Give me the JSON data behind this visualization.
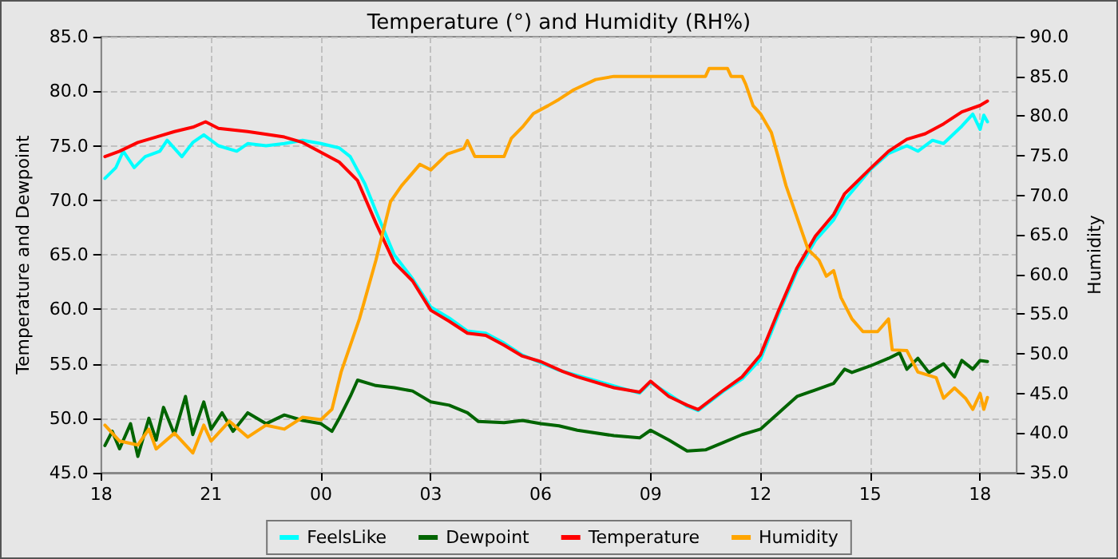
{
  "chart_data": {
    "type": "line",
    "title": "Temperature (°) and Humidity (RH%)",
    "ylabel": "Temperature and Dewpoint",
    "y2label": "Humidity",
    "xlim": [
      18,
      43
    ],
    "xticks": [
      {
        "value": 18,
        "label": "18"
      },
      {
        "value": 21,
        "label": "21"
      },
      {
        "value": 24,
        "label": "00"
      },
      {
        "value": 27,
        "label": "03"
      },
      {
        "value": 30,
        "label": "06"
      },
      {
        "value": 33,
        "label": "09"
      },
      {
        "value": 36,
        "label": "12"
      },
      {
        "value": 39,
        "label": "15"
      },
      {
        "value": 42,
        "label": "18"
      }
    ],
    "ylim": [
      45,
      85
    ],
    "yticks": [
      {
        "value": 45,
        "label": "45.0"
      },
      {
        "value": 50,
        "label": "50.0"
      },
      {
        "value": 55,
        "label": "55.0"
      },
      {
        "value": 60,
        "label": "60.0"
      },
      {
        "value": 65,
        "label": "65.0"
      },
      {
        "value": 70,
        "label": "70.0"
      },
      {
        "value": 75,
        "label": "75.0"
      },
      {
        "value": 80,
        "label": "80.0"
      },
      {
        "value": 85,
        "label": "85.0"
      }
    ],
    "y2lim": [
      35,
      90
    ],
    "y2ticks": [
      {
        "value": 35,
        "label": "35.0"
      },
      {
        "value": 40,
        "label": "40.0"
      },
      {
        "value": 45,
        "label": "45.0"
      },
      {
        "value": 50,
        "label": "50.0"
      },
      {
        "value": 55,
        "label": "55.0"
      },
      {
        "value": 60,
        "label": "60.0"
      },
      {
        "value": 65,
        "label": "65.0"
      },
      {
        "value": 70,
        "label": "70.0"
      },
      {
        "value": 75,
        "label": "75.0"
      },
      {
        "value": 80,
        "label": "80.0"
      },
      {
        "value": 85,
        "label": "85.0"
      },
      {
        "value": 90,
        "label": "90.0"
      }
    ],
    "grid": true,
    "legend": "bottom",
    "marker": "none",
    "line_style": "solid",
    "series": [
      {
        "name": "FeelsLike",
        "color": "#00ffff",
        "x": [
          18.1,
          18.4,
          18.6,
          18.9,
          19.2,
          19.6,
          19.8,
          20.2,
          20.5,
          20.8,
          21.2,
          21.7,
          22,
          22.5,
          23,
          23.5,
          24,
          24.5,
          24.8,
          25.2,
          25.5,
          26,
          26.5,
          27,
          27.5,
          28,
          28.5,
          29,
          29.5,
          30,
          30.5,
          31,
          32,
          32.7,
          33,
          33.5,
          34,
          34.3,
          35,
          35.5,
          36,
          36.5,
          37,
          37.5,
          38,
          38.3,
          39,
          39.5,
          40,
          40.3,
          40.7,
          41,
          41.5,
          41.8,
          42,
          42.1,
          42.2
        ],
        "values": [
          72.0,
          73.0,
          74.5,
          73.0,
          74.0,
          74.5,
          75.5,
          74.0,
          75.3,
          76.0,
          75.0,
          74.5,
          75.2,
          75.0,
          75.2,
          75.5,
          75.2,
          74.8,
          74.0,
          71.5,
          69.0,
          65.0,
          62.8,
          60.2,
          59.2,
          58.0,
          57.8,
          56.9,
          55.8,
          null,
          54.4,
          null,
          null,
          52.3,
          53.3,
          null,
          51.1,
          50.7,
          52.5,
          53.6,
          55.4,
          59.6,
          63.5,
          66.3,
          68.2,
          70.0,
          72.8,
          74.3,
          75.0,
          74.5,
          75.5,
          75.2,
          76.8,
          77.9,
          76.5,
          77.8,
          77.2
        ]
      },
      {
        "name": "Dewpoint",
        "color": "#006400",
        "x": [
          18.1,
          18.3,
          18.5,
          18.8,
          19.0,
          19.3,
          19.5,
          19.7,
          20.0,
          20.3,
          20.5,
          20.8,
          21.0,
          21.3,
          21.6,
          22,
          22.5,
          23,
          23.5,
          24,
          24.3,
          24.5,
          24.8,
          25.0,
          25.5,
          26,
          26.5,
          27,
          27.5,
          28,
          28.3,
          29,
          29.5,
          30,
          30.5,
          31,
          32,
          32.7,
          33,
          33.5,
          34,
          34.5,
          35,
          35.5,
          36,
          36.5,
          37,
          37.5,
          38,
          38.3,
          38.5,
          39,
          39.5,
          39.8,
          40,
          40.3,
          40.6,
          41,
          41.3,
          41.5,
          41.8,
          42,
          42.2
        ],
        "values": [
          47.5,
          48.8,
          47.2,
          49.5,
          46.5,
          50.0,
          48.0,
          51.0,
          48.5,
          52.0,
          48.5,
          51.5,
          49.0,
          50.5,
          48.8,
          50.5,
          49.5,
          50.3,
          49.8,
          49.5,
          48.8,
          50.0,
          52.0,
          53.5,
          53.0,
          52.8,
          52.5,
          51.5,
          51.2,
          50.5,
          49.7,
          49.6,
          49.8,
          49.5,
          49.3,
          48.9,
          48.4,
          48.2,
          48.9,
          48.0,
          47.0,
          47.1,
          47.8,
          48.5,
          49.0,
          50.5,
          52.0,
          52.6,
          53.2,
          54.5,
          54.2,
          54.8,
          55.5,
          56.0,
          54.5,
          55.5,
          54.2,
          55.0,
          53.8,
          55.3,
          54.5,
          55.3,
          55.2
        ]
      },
      {
        "name": "Temperature",
        "color": "#ff0000",
        "x": [
          18.1,
          18.5,
          19,
          19.5,
          20,
          20.5,
          20.85,
          21.2,
          22,
          23,
          23.5,
          24,
          24.5,
          25,
          25.5,
          26,
          26.5,
          27,
          27.5,
          28,
          28.5,
          29,
          29.5,
          30,
          30.6,
          31,
          32,
          32.7,
          33,
          33.5,
          34,
          34.3,
          35,
          35.5,
          36,
          36.5,
          37,
          37.5,
          38,
          38.3,
          39,
          39.5,
          40,
          40.5,
          41,
          41.5,
          42,
          42.2
        ],
        "values": [
          74.0,
          74.5,
          75.3,
          75.8,
          76.3,
          76.7,
          77.2,
          76.6,
          76.3,
          75.8,
          75.3,
          74.4,
          73.5,
          71.8,
          67.9,
          64.3,
          62.6,
          59.9,
          58.9,
          57.8,
          57.6,
          56.7,
          55.7,
          55.2,
          54.3,
          53.8,
          52.8,
          52.4,
          53.4,
          52.0,
          51.2,
          50.8,
          52.6,
          53.8,
          55.8,
          59.9,
          63.8,
          66.7,
          68.7,
          70.6,
          72.9,
          74.5,
          75.6,
          76.1,
          77.0,
          78.1,
          78.7,
          79.1
        ]
      },
      {
        "name": "Humidity",
        "color": "#ffa500",
        "axis": "y2",
        "x": [
          18.1,
          18.5,
          19.0,
          19.3,
          19.5,
          20,
          20.5,
          20.8,
          21,
          21.5,
          22,
          22.5,
          23,
          23.5,
          24,
          24.3,
          24.55,
          25.05,
          25.5,
          25.9,
          26.2,
          26.7,
          27,
          27.45,
          27.9,
          28,
          28.2,
          28.5,
          29,
          29.2,
          29.5,
          29.8,
          30.2,
          30.5,
          30.9,
          31.5,
          32,
          34.5,
          34.6,
          35.1,
          35.2,
          35.5,
          35.6,
          35.8,
          36,
          36.3,
          36.5,
          36.7,
          37,
          37.3,
          37.6,
          37.8,
          38.0,
          38.2,
          38.5,
          38.8,
          39.2,
          39.5,
          39.6,
          40,
          40.3,
          40.8,
          41.0,
          41.3,
          41.6,
          41.8,
          42.0,
          42.1,
          42.2
        ],
        "values": [
          41.0,
          39.0,
          38.5,
          40.5,
          38.0,
          40.0,
          37.5,
          41.0,
          39.0,
          41.5,
          39.5,
          41.0,
          40.5,
          42.0,
          41.7,
          43.0,
          47.7,
          54.4,
          61.8,
          69.2,
          71.2,
          73.9,
          73.2,
          75.2,
          75.9,
          76.9,
          74.9,
          74.9,
          74.9,
          77.2,
          78.6,
          80.3,
          81.3,
          82.1,
          83.3,
          84.6,
          85.0,
          85.0,
          86.0,
          86.0,
          85.0,
          85.0,
          84.0,
          81.3,
          80.3,
          77.9,
          74.6,
          71.2,
          67.2,
          63.2,
          61.8,
          59.8,
          60.5,
          57.1,
          54.4,
          52.8,
          52.8,
          54.4,
          50.5,
          50.4,
          47.7,
          47.0,
          44.4,
          45.7,
          44.4,
          43.0,
          45.0,
          43.0,
          44.5
        ]
      }
    ]
  }
}
